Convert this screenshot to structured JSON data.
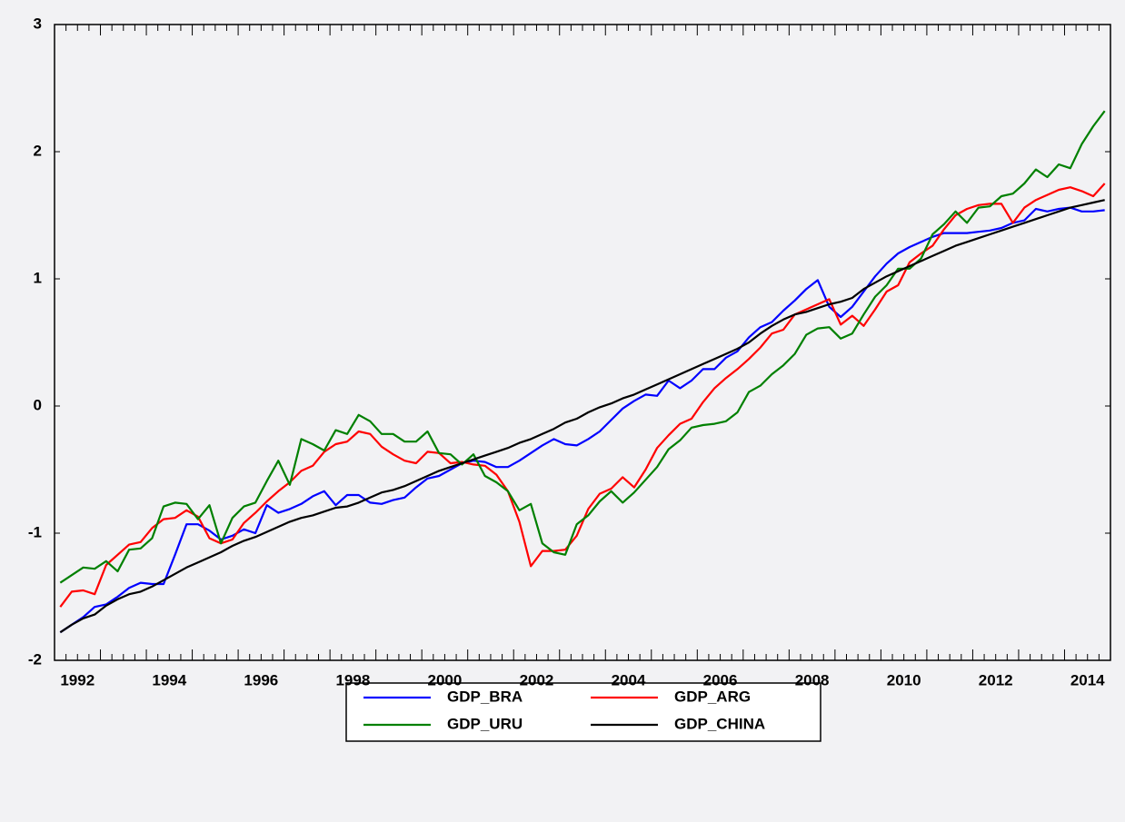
{
  "chart_data": {
    "type": "line",
    "categories": [
      "1992",
      null,
      null,
      null,
      null,
      null,
      null,
      null,
      "1994",
      null,
      null,
      null,
      null,
      null,
      null,
      null,
      "1996",
      null,
      null,
      null,
      null,
      null,
      null,
      null,
      "1998",
      null,
      null,
      null,
      null,
      null,
      null,
      null,
      "2000",
      null,
      null,
      null,
      null,
      null,
      null,
      null,
      "2002",
      null,
      null,
      null,
      null,
      null,
      null,
      null,
      "2004",
      null,
      null,
      null,
      null,
      null,
      null,
      null,
      "2006",
      null,
      null,
      null,
      null,
      null,
      null,
      null,
      "2008",
      null,
      null,
      null,
      null,
      null,
      null,
      null,
      "2010",
      null,
      null,
      null,
      null,
      null,
      null,
      null,
      "2012",
      null,
      null,
      null,
      null,
      null,
      null,
      null,
      "2014",
      null,
      null,
      null
    ],
    "series": [
      {
        "name": "GDP_BRA",
        "color": "#0000ff",
        "values": [
          -1.78,
          -1.72,
          -1.66,
          -1.58,
          -1.56,
          -1.5,
          -1.43,
          -1.39,
          -1.4,
          -1.4,
          -1.17,
          -0.93,
          -0.93,
          -0.98,
          -1.05,
          -1.02,
          -0.97,
          -1.0,
          -0.78,
          -0.84,
          -0.81,
          -0.77,
          -0.71,
          -0.67,
          -0.78,
          -0.7,
          -0.7,
          -0.76,
          -0.77,
          -0.74,
          -0.72,
          -0.64,
          -0.57,
          -0.55,
          -0.5,
          -0.45,
          -0.43,
          -0.44,
          -0.48,
          -0.48,
          -0.43,
          -0.37,
          -0.31,
          -0.26,
          -0.3,
          -0.31,
          -0.26,
          -0.2,
          -0.11,
          -0.02,
          0.04,
          0.09,
          0.08,
          0.2,
          0.14,
          0.2,
          0.29,
          0.29,
          0.38,
          0.43,
          0.54,
          0.62,
          0.66,
          0.75,
          0.83,
          0.92,
          0.99,
          0.78,
          0.7,
          0.78,
          0.9,
          1.02,
          1.12,
          1.2,
          1.25,
          1.29,
          1.33,
          1.36,
          1.36,
          1.36,
          1.37,
          1.38,
          1.4,
          1.44,
          1.46,
          1.55,
          1.53,
          1.55,
          1.56,
          1.53,
          1.53,
          1.54
        ]
      },
      {
        "name": "GDP_ARG",
        "color": "#ff0000",
        "values": [
          -1.58,
          -1.46,
          -1.45,
          -1.48,
          -1.25,
          -1.17,
          -1.09,
          -1.07,
          -0.96,
          -0.89,
          -0.88,
          -0.82,
          -0.87,
          -1.04,
          -1.08,
          -1.05,
          -0.92,
          -0.84,
          -0.75,
          -0.67,
          -0.6,
          -0.51,
          -0.47,
          -0.36,
          -0.3,
          -0.28,
          -0.2,
          -0.22,
          -0.32,
          -0.38,
          -0.43,
          -0.45,
          -0.36,
          -0.37,
          -0.45,
          -0.44,
          -0.46,
          -0.47,
          -0.54,
          -0.67,
          -0.91,
          -1.26,
          -1.14,
          -1.14,
          -1.13,
          -1.02,
          -0.81,
          -0.69,
          -0.65,
          -0.56,
          -0.64,
          -0.5,
          -0.33,
          -0.23,
          -0.14,
          -0.1,
          0.03,
          0.14,
          0.22,
          0.29,
          0.37,
          0.46,
          0.57,
          0.6,
          0.72,
          0.76,
          0.8,
          0.84,
          0.64,
          0.71,
          0.63,
          0.76,
          0.9,
          0.95,
          1.13,
          1.2,
          1.26,
          1.39,
          1.5,
          1.55,
          1.58,
          1.59,
          1.59,
          1.44,
          1.56,
          1.62,
          1.66,
          1.7,
          1.72,
          1.69,
          1.65,
          1.75
        ]
      },
      {
        "name": "GDP_URU",
        "color": "#008000",
        "values": [
          -1.39,
          -1.33,
          -1.27,
          -1.28,
          -1.22,
          -1.3,
          -1.13,
          -1.12,
          -1.04,
          -0.79,
          -0.76,
          -0.77,
          -0.89,
          -0.78,
          -1.08,
          -0.88,
          -0.79,
          -0.76,
          -0.59,
          -0.43,
          -0.62,
          -0.26,
          -0.3,
          -0.35,
          -0.19,
          -0.22,
          -0.07,
          -0.12,
          -0.22,
          -0.22,
          -0.28,
          -0.28,
          -0.2,
          -0.37,
          -0.38,
          -0.46,
          -0.38,
          -0.55,
          -0.6,
          -0.67,
          -0.82,
          -0.77,
          -1.08,
          -1.15,
          -1.17,
          -0.93,
          -0.86,
          -0.75,
          -0.67,
          -0.76,
          -0.68,
          -0.58,
          -0.48,
          -0.34,
          -0.27,
          -0.17,
          -0.15,
          -0.14,
          -0.12,
          -0.05,
          0.11,
          0.16,
          0.25,
          0.32,
          0.41,
          0.56,
          0.61,
          0.62,
          0.53,
          0.57,
          0.72,
          0.86,
          0.95,
          1.08,
          1.08,
          1.16,
          1.35,
          1.43,
          1.53,
          1.44,
          1.56,
          1.57,
          1.65,
          1.67,
          1.75,
          1.86,
          1.8,
          1.9,
          1.87,
          2.06,
          2.2,
          2.32
        ]
      },
      {
        "name": "GDP_CHINA",
        "color": "#000000",
        "values": [
          -1.78,
          -1.72,
          -1.67,
          -1.64,
          -1.57,
          -1.52,
          -1.48,
          -1.46,
          -1.42,
          -1.37,
          -1.32,
          -1.27,
          -1.23,
          -1.19,
          -1.15,
          -1.1,
          -1.06,
          -1.03,
          -0.99,
          -0.95,
          -0.91,
          -0.88,
          -0.86,
          -0.83,
          -0.8,
          -0.79,
          -0.76,
          -0.72,
          -0.68,
          -0.66,
          -0.63,
          -0.59,
          -0.55,
          -0.51,
          -0.48,
          -0.45,
          -0.42,
          -0.39,
          -0.36,
          -0.33,
          -0.29,
          -0.26,
          -0.22,
          -0.18,
          -0.13,
          -0.1,
          -0.05,
          -0.01,
          0.02,
          0.06,
          0.09,
          0.13,
          0.17,
          0.21,
          0.25,
          0.29,
          0.33,
          0.37,
          0.41,
          0.45,
          0.5,
          0.57,
          0.63,
          0.68,
          0.72,
          0.74,
          0.77,
          0.8,
          0.82,
          0.85,
          0.92,
          0.97,
          1.02,
          1.06,
          1.1,
          1.14,
          1.18,
          1.22,
          1.26,
          1.29,
          1.32,
          1.35,
          1.38,
          1.41,
          1.44,
          1.47,
          1.5,
          1.53,
          1.56,
          1.58,
          1.6,
          1.62
        ]
      }
    ],
    "ylim": [
      -2,
      3
    ],
    "yticks": [
      -2,
      -1,
      0,
      1,
      2,
      3
    ],
    "grid": false
  }
}
